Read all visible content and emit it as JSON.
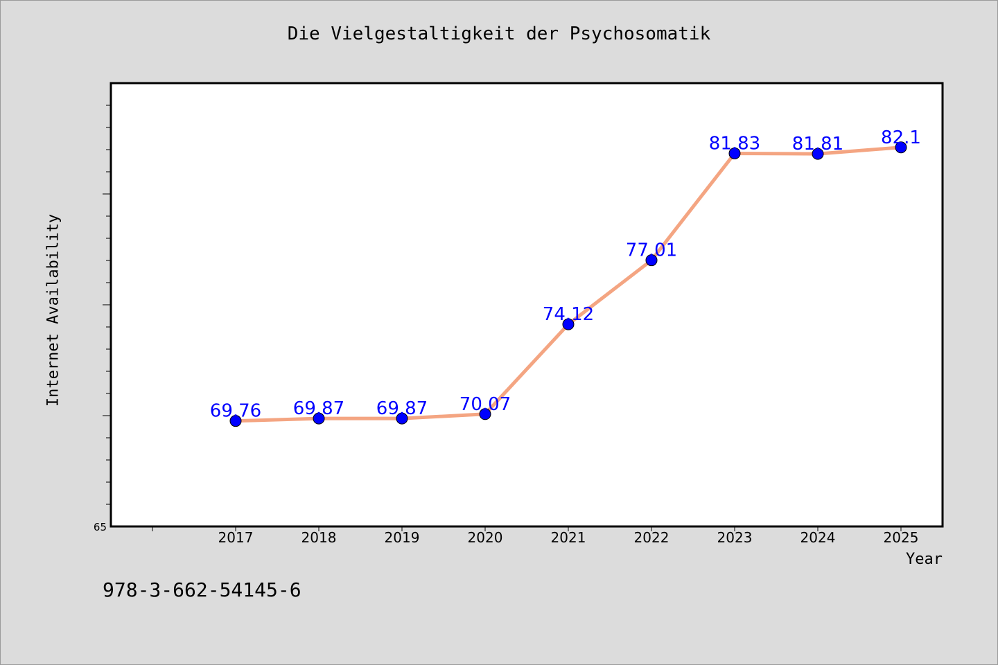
{
  "chart_data": {
    "type": "line",
    "title": "Die Vielgestaltigkeit der Psychosomatik",
    "xlabel": "Year",
    "ylabel": "Internet Availability",
    "x": [
      "2017",
      "2018",
      "2019",
      "2020",
      "2021",
      "2022",
      "2023",
      "2024",
      "2025"
    ],
    "series": [
      {
        "values": [
          69.76,
          69.87,
          69.87,
          70.07,
          74.12,
          77.01,
          81.83,
          81.81,
          82.1
        ]
      }
    ],
    "data_labels": [
      "69.76",
      "69.87",
      "69.87",
      "70.07",
      "74.12",
      "77.01",
      "81.83",
      "81.81",
      "82.1"
    ],
    "ylim": [
      65,
      85
    ],
    "y_tick_labels": [
      "65"
    ],
    "grid": false,
    "colors": {
      "line": "#f4a582",
      "marker": "#0000ff",
      "label": "#0000ff",
      "plot_bg": "#ffffff",
      "figure_bg": "#dcdcdc"
    }
  },
  "footer_text": "978-3-662-54145-6"
}
